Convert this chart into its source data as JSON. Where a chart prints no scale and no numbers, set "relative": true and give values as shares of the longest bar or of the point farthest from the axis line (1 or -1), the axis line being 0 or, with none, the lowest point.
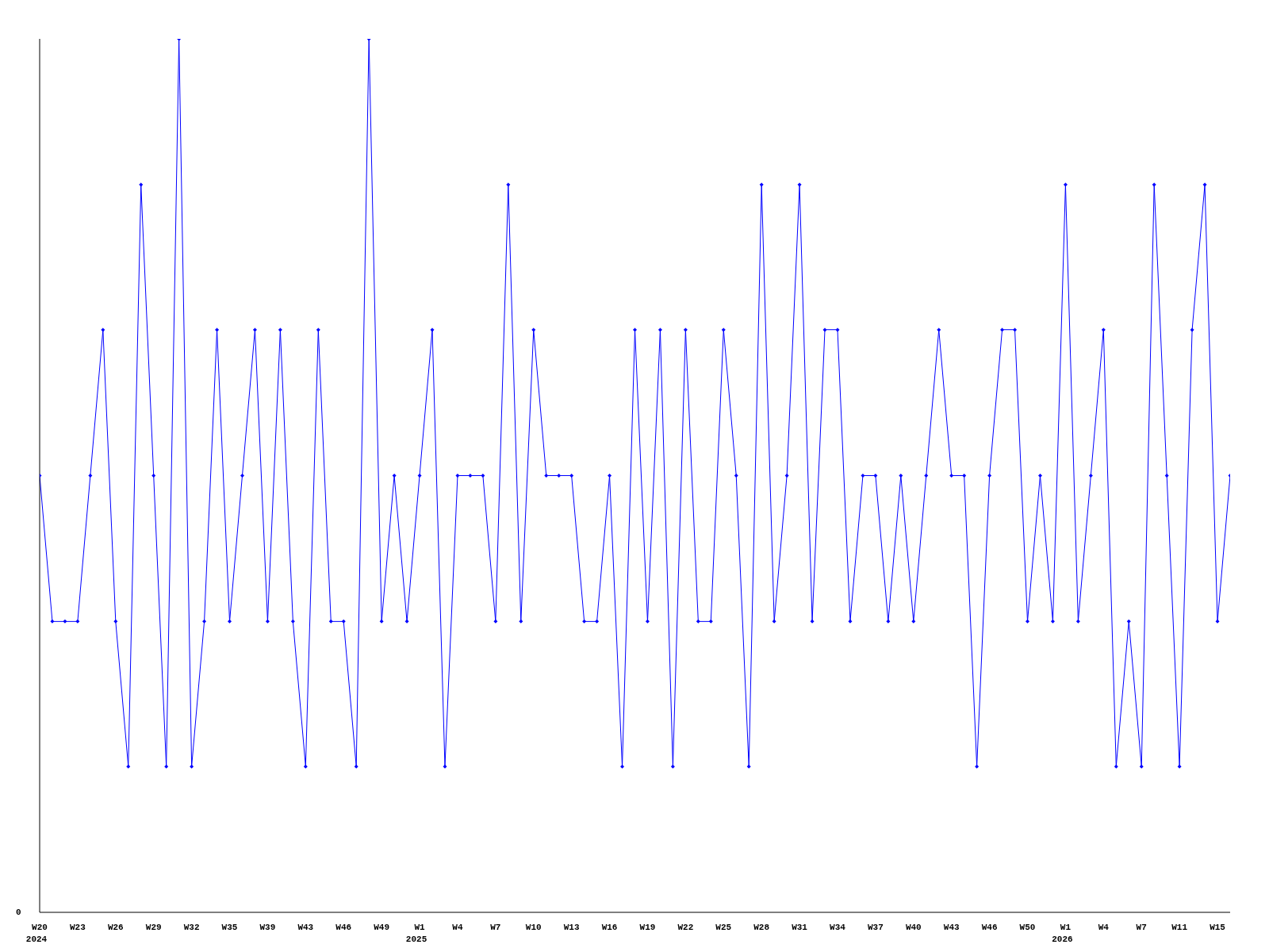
{
  "chart_data": {
    "type": "line",
    "relative": true,
    "categories": [
      "W20\n2024",
      null,
      null,
      "W23",
      null,
      null,
      "W26",
      null,
      null,
      "W29",
      null,
      null,
      "W32",
      null,
      null,
      "W35",
      null,
      null,
      "W39",
      null,
      null,
      "W43",
      null,
      null,
      "W46",
      null,
      null,
      "W49",
      null,
      null,
      "W1\n2025",
      null,
      null,
      "W4",
      null,
      null,
      "W7",
      null,
      null,
      "W10",
      null,
      null,
      "W13",
      null,
      null,
      "W16",
      null,
      null,
      "W19",
      null,
      null,
      "W22",
      null,
      null,
      "W25",
      null,
      null,
      "W28",
      null,
      null,
      "W31",
      null,
      null,
      "W34",
      null,
      null,
      "W37",
      null,
      null,
      "W40",
      null,
      null,
      "W43",
      null,
      null,
      "W46",
      null,
      null,
      "W50",
      null,
      null,
      "W1\n2026",
      null,
      null,
      "W4",
      null,
      null,
      "W7",
      null,
      null,
      "W11",
      null,
      null,
      "W15",
      null
    ],
    "series": [
      {
        "color": "#0000ff",
        "values": [
          0.5,
          0.333,
          0.333,
          0.333,
          0.5,
          0.667,
          0.333,
          0.167,
          0.833,
          0.5,
          0.167,
          1,
          0.167,
          0.333,
          0.667,
          0.333,
          0.5,
          0.667,
          0.333,
          0.667,
          0.333,
          0.167,
          0.667,
          0.333,
          0.333,
          0.167,
          1,
          0.333,
          0.5,
          0.333,
          0.5,
          0.667,
          0.167,
          0.5,
          0.5,
          0.5,
          0.333,
          0.833,
          0.333,
          0.667,
          0.5,
          0.5,
          0.5,
          0.333,
          0.333,
          0.5,
          0.167,
          0.667,
          0.333,
          0.667,
          0.167,
          0.667,
          0.333,
          0.333,
          0.667,
          0.5,
          0.167,
          0.833,
          0.333,
          0.5,
          0.833,
          0.333,
          0.667,
          0.667,
          0.333,
          0.5,
          0.5,
          0.333,
          0.5,
          0.333,
          0.5,
          0.667,
          0.5,
          0.5,
          0.167,
          0.5,
          0.667,
          0.667,
          0.333,
          0.5,
          0.333,
          0.833,
          0.333,
          0.5,
          0.667,
          0.167,
          0.333,
          0.167,
          0.833,
          0.5,
          0.167,
          0.667,
          0.833,
          0.333,
          0.5
        ]
      }
    ],
    "annotations": [
      "0"
    ],
    "marker": "diamond",
    "line_style": "solid",
    "grid": false
  }
}
